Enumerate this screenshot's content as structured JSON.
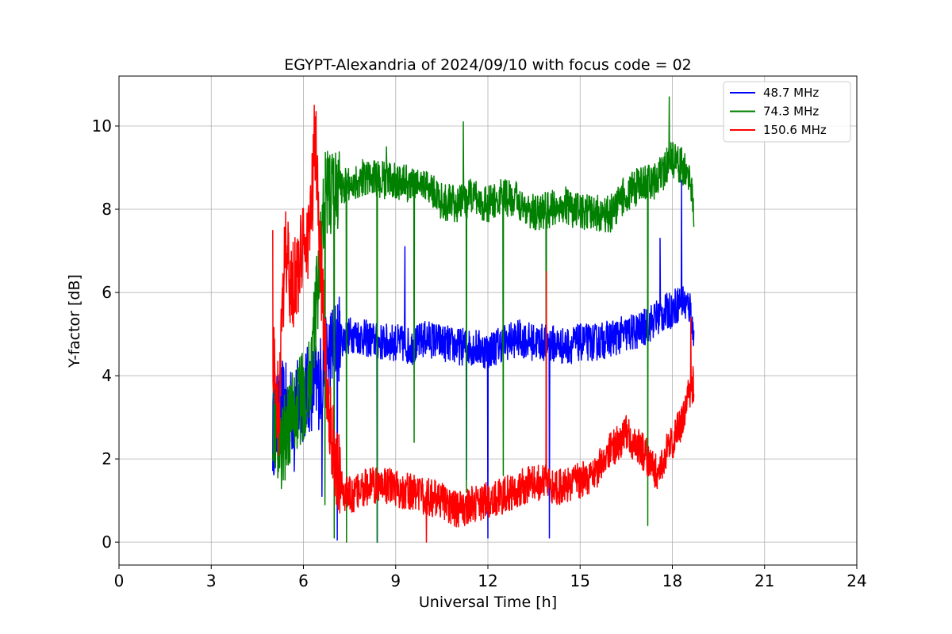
{
  "chart_data": {
    "type": "line",
    "title": "EGYPT-Alexandria of 2024/09/10 with focus code = 02",
    "xlabel": "Universal Time [h]",
    "ylabel": "Y-factor [dB]",
    "xlim": [
      0,
      24
    ],
    "ylim": [
      -0.55,
      11.2
    ],
    "xticks": [
      0,
      3,
      6,
      9,
      12,
      15,
      18,
      21,
      24
    ],
    "xtick_labels": [
      "0",
      "3",
      "6",
      "9",
      "12",
      "15",
      "18",
      "21",
      "24"
    ],
    "yticks": [
      0,
      2,
      4,
      6,
      8,
      10
    ],
    "ytick_labels": [
      "0",
      "2",
      "4",
      "6",
      "8",
      "10"
    ],
    "grid": true,
    "legend_position": "top-right",
    "series": [
      {
        "name": "48.7 MHz",
        "legend_label": "  48.7 MHz",
        "color": "#0000ff",
        "x": [
          5.0,
          5.3,
          5.6,
          5.9,
          6.2,
          6.5,
          6.8,
          7.0,
          7.3,
          7.6,
          8.0,
          8.5,
          9.0,
          9.5,
          10.0,
          10.5,
          11.0,
          11.5,
          12.0,
          12.5,
          13.0,
          13.5,
          14.0,
          14.5,
          15.0,
          15.5,
          16.0,
          16.5,
          17.0,
          17.5,
          18.0,
          18.3,
          18.6,
          18.7
        ],
        "y": [
          2.6,
          3.3,
          3.1,
          3.4,
          3.7,
          3.8,
          4.5,
          4.8,
          4.9,
          5.0,
          4.9,
          4.8,
          4.8,
          4.7,
          4.9,
          4.8,
          4.7,
          4.7,
          4.6,
          4.8,
          4.9,
          4.8,
          4.8,
          4.7,
          4.8,
          4.8,
          4.9,
          5.0,
          5.1,
          5.4,
          5.6,
          5.8,
          5.6,
          4.8
        ],
        "dips": [
          [
            5.7,
            1.7
          ],
          [
            6.6,
            1.1
          ],
          [
            7.1,
            0.05
          ],
          [
            8.4,
            0.0
          ],
          [
            11.3,
            1.5
          ],
          [
            12.0,
            0.1
          ],
          [
            14.0,
            0.1
          ],
          [
            9.3,
            7.1
          ],
          [
            18.3,
            8.7
          ],
          [
            17.6,
            7.3
          ]
        ]
      },
      {
        "name": "74.3 MHz",
        "legend_label": "  74.3 MHz",
        "color": "#008000",
        "x": [
          5.0,
          5.3,
          5.6,
          5.9,
          6.2,
          6.5,
          6.7,
          7.0,
          7.5,
          8.0,
          8.5,
          9.0,
          9.5,
          10.0,
          10.5,
          11.0,
          11.5,
          12.0,
          12.5,
          13.0,
          13.5,
          14.0,
          14.5,
          15.0,
          15.5,
          16.0,
          16.5,
          17.0,
          17.5,
          18.0,
          18.4,
          18.6,
          18.7
        ],
        "y": [
          3.0,
          2.3,
          3.0,
          3.4,
          3.8,
          6.5,
          8.3,
          8.5,
          8.6,
          8.8,
          8.7,
          8.7,
          8.6,
          8.6,
          8.2,
          8.1,
          8.3,
          8.1,
          8.3,
          8.2,
          7.9,
          8.0,
          8.1,
          7.9,
          7.9,
          7.9,
          8.4,
          8.6,
          8.7,
          9.2,
          9.0,
          8.5,
          8.0
        ],
        "dips": [
          [
            6.7,
            0.9
          ],
          [
            7.0,
            0.1
          ],
          [
            7.4,
            0.0
          ],
          [
            8.4,
            0.0
          ],
          [
            9.6,
            2.4
          ],
          [
            11.3,
            1.2
          ],
          [
            12.5,
            1.6
          ],
          [
            13.9,
            1.5
          ],
          [
            17.2,
            0.4
          ],
          [
            11.2,
            10.1
          ],
          [
            17.9,
            10.7
          ],
          [
            8.7,
            9.5
          ]
        ]
      },
      {
        "name": "150.6 MHz",
        "legend_label": " 150.6 MHz",
        "color": "#ff0000",
        "x": [
          5.0,
          5.2,
          5.4,
          5.6,
          5.8,
          6.0,
          6.2,
          6.4,
          6.6,
          6.8,
          7.0,
          7.3,
          7.6,
          8.0,
          8.5,
          9.0,
          9.5,
          10.0,
          10.5,
          11.0,
          11.5,
          12.0,
          12.5,
          13.0,
          13.5,
          14.0,
          14.5,
          15.0,
          15.5,
          16.0,
          16.5,
          17.0,
          17.5,
          18.0,
          18.3,
          18.6,
          18.7
        ],
        "y": [
          4.5,
          3.0,
          7.2,
          6.0,
          6.5,
          7.0,
          7.5,
          9.5,
          6.0,
          3.5,
          2.0,
          1.2,
          1.1,
          1.3,
          1.4,
          1.3,
          1.2,
          1.1,
          1.0,
          0.8,
          0.9,
          1.0,
          1.1,
          1.3,
          1.4,
          1.4,
          1.3,
          1.5,
          1.7,
          2.2,
          2.6,
          2.2,
          1.7,
          2.4,
          2.9,
          3.7,
          3.8
        ],
        "dips": [
          [
            6.35,
            10.5
          ],
          [
            5.0,
            7.5
          ],
          [
            10.0,
            0.0
          ],
          [
            13.9,
            6.5
          ],
          [
            18.6,
            5.4
          ]
        ]
      }
    ]
  }
}
